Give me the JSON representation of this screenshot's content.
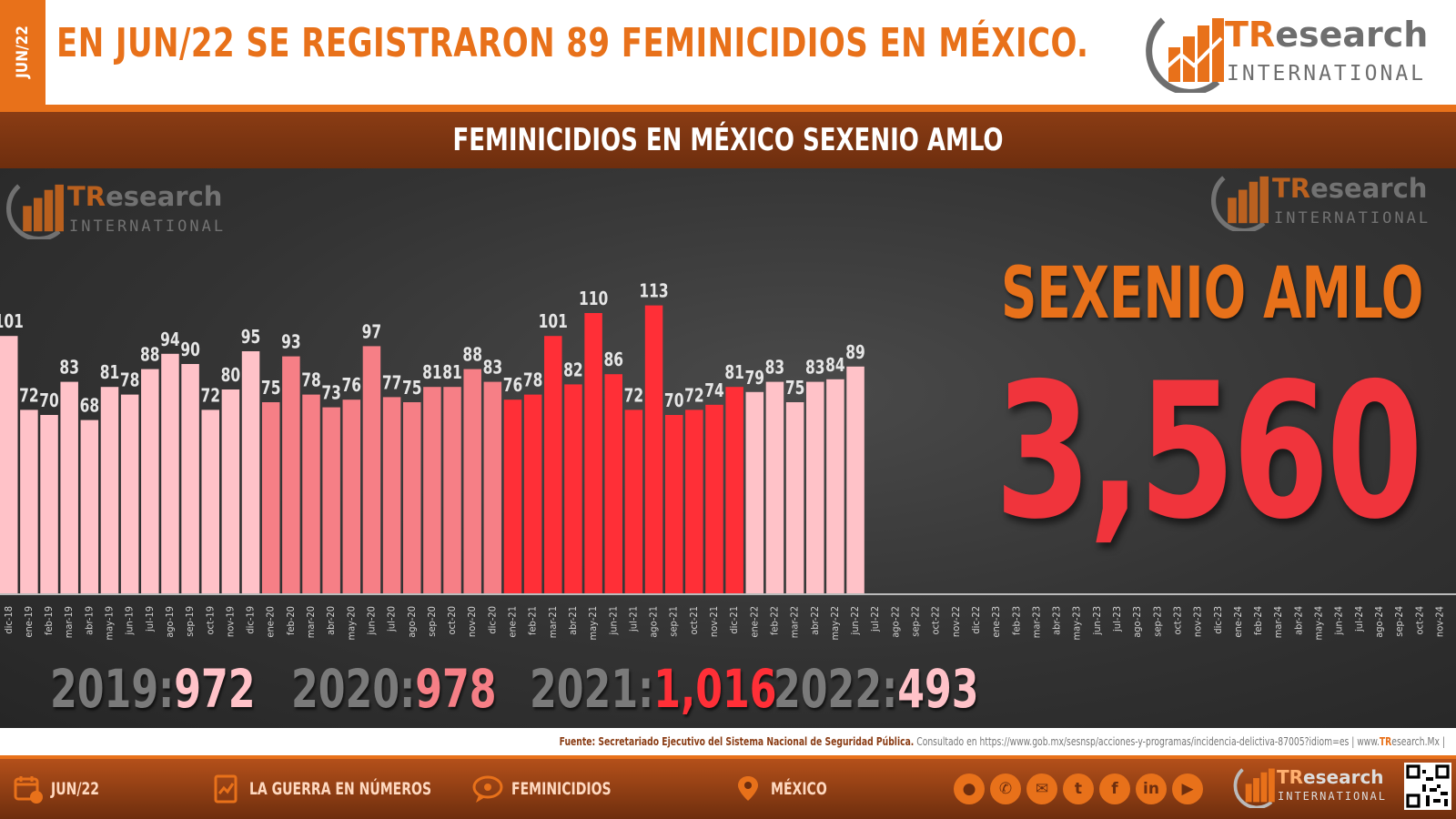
{
  "header": {
    "date_tab": "JUN/22",
    "headline": "EN JUN/22 SE REGISTRARON 89 FEMINICIDIOS EN MÉXICO.",
    "brand_name_accent": "TR",
    "brand_name_rest": "esearch",
    "brand_sub": "INTERNATIONAL"
  },
  "subheader": {
    "title": "FEMINICIDIOS EN MÉXICO SEXENIO AMLO"
  },
  "summary": {
    "label": "SEXENIO AMLO",
    "total": "3,560",
    "year_totals": [
      {
        "year": "2019:",
        "total": "972",
        "color": "#ffc2c8"
      },
      {
        "year": "2020:",
        "total": "978",
        "color": "#f67f86"
      },
      {
        "year": "2021:",
        "total": "1,016",
        "color": "#ff2f37"
      },
      {
        "year": "2022:",
        "total": "493",
        "color": "#ffc2c8"
      }
    ]
  },
  "source": {
    "label": "Fuente: Secretariado Ejecutivo del Sistema Nacional de Seguridad Pública.",
    "consulted": "Consultado en https://www.gob.mx/sesnsp/acciones-y-programas/incidencia-delictiva-87005?idiom=es | www.",
    "site_accent": "TR",
    "site_rest": "esearch.Mx |"
  },
  "footer": {
    "items": [
      {
        "label": "JUN/22",
        "icon": "calendar-icon"
      },
      {
        "label": "LA GUERRA EN NÚMEROS",
        "icon": "document-chart-icon"
      },
      {
        "label": "FEMINICIDIOS",
        "icon": "speech-bubble-icon"
      },
      {
        "label": "MÉXICO",
        "icon": "map-pin-icon"
      }
    ],
    "social_icons": [
      "globe-icon",
      "phone-icon",
      "mail-icon",
      "twitter-icon",
      "facebook-icon",
      "linkedin-icon",
      "youtube-icon"
    ]
  },
  "colors": {
    "orange": "#e8711a",
    "dark_brown": "#6e2e0e",
    "pink_2019": "#ffc2c8",
    "salmon_2020": "#f67f86",
    "red_2021": "#ff2f37",
    "pink_2022": "#ffc2c8",
    "total_red": "#f0343c"
  },
  "chart_data": {
    "type": "bar",
    "title": "FEMINICIDIOS EN MÉXICO SEXENIO AMLO",
    "xlabel": "",
    "ylabel": "",
    "ylim": [
      0,
      120
    ],
    "grid": false,
    "categories": [
      "dic-18",
      "ene-19",
      "feb-19",
      "mar-19",
      "abr-19",
      "may-19",
      "jun-19",
      "jul-19",
      "ago-19",
      "sep-19",
      "oct-19",
      "nov-19",
      "dic-19",
      "ene-20",
      "feb-20",
      "mar-20",
      "abr-20",
      "may-20",
      "jun-20",
      "jul-20",
      "ago-20",
      "sep-20",
      "oct-20",
      "nov-20",
      "dic-20",
      "ene-21",
      "feb-21",
      "mar-21",
      "abr-21",
      "may-21",
      "jun-21",
      "jul-21",
      "ago-21",
      "sep-21",
      "oct-21",
      "nov-21",
      "dic-21",
      "ene-22",
      "feb-22",
      "mar-22",
      "abr-22",
      "may-22",
      "jun-22",
      "jul-22",
      "ago-22",
      "sep-22",
      "oct-22",
      "nov-22",
      "dic-22",
      "ene-23",
      "feb-23",
      "mar-23",
      "abr-23",
      "may-23",
      "jun-23",
      "jul-23",
      "ago-23",
      "sep-23",
      "oct-23",
      "nov-23",
      "dic-23",
      "ene-24",
      "feb-24",
      "mar-24",
      "abr-24",
      "may-24",
      "jun-24",
      "jul-24",
      "ago-24",
      "sep-24",
      "oct-24",
      "nov-24"
    ],
    "values": [
      101,
      72,
      70,
      83,
      68,
      81,
      78,
      88,
      94,
      90,
      72,
      80,
      95,
      75,
      93,
      78,
      73,
      76,
      97,
      77,
      75,
      81,
      81,
      88,
      83,
      76,
      78,
      101,
      82,
      110,
      86,
      72,
      113,
      70,
      72,
      74,
      81,
      79,
      83,
      75,
      83,
      84,
      89,
      null,
      null,
      null,
      null,
      null,
      null,
      null,
      null,
      null,
      null,
      null,
      null,
      null,
      null,
      null,
      null,
      null,
      null,
      null,
      null,
      null,
      null,
      null,
      null,
      null,
      null,
      null,
      null,
      null
    ],
    "bar_colors_by_year": {
      "2018": "#ffc2c8",
      "2019": "#ffc2c8",
      "2020": "#f67f86",
      "2021": "#ff2f37",
      "2022": "#ffc2c8"
    }
  }
}
